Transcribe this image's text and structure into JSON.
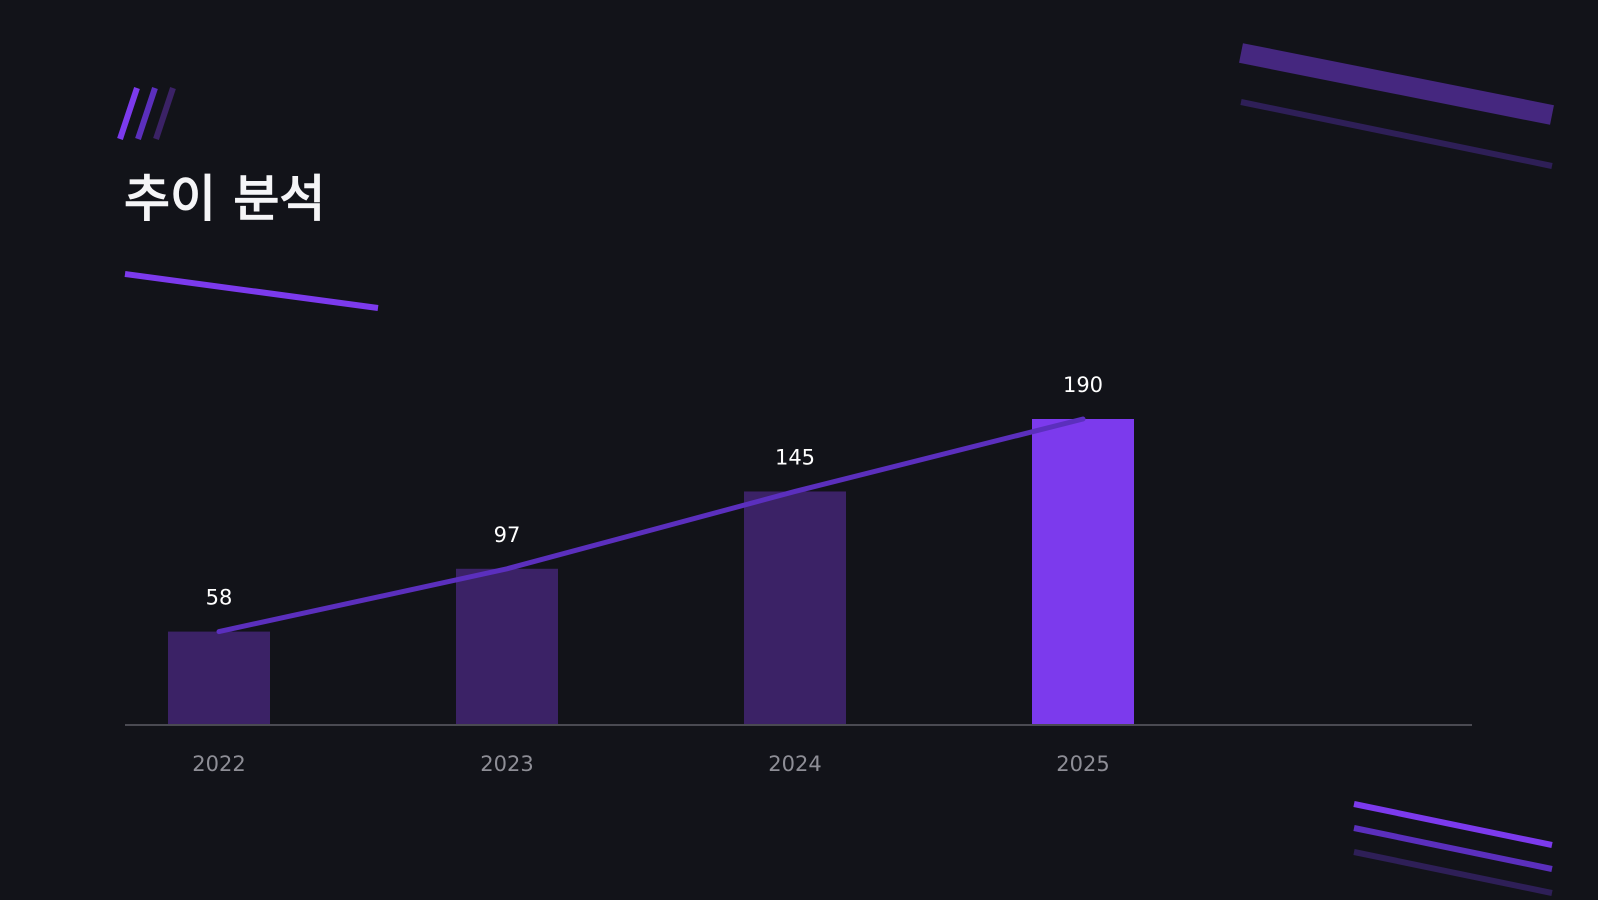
{
  "slide": {
    "title": "추이 분석"
  },
  "colors": {
    "background": "#121319",
    "accent": "#7c3aed",
    "bar_muted": "#3b2266",
    "trend_line": "#5b2fbd",
    "axis_line": "#4a4a52",
    "tick_text": "#8e8e96",
    "value_text": "#ffffff",
    "title_text": "#f5f5f7"
  },
  "chart_data": {
    "type": "bar",
    "categories": [
      "2022",
      "2023",
      "2024",
      "2025"
    ],
    "values": [
      58,
      97,
      145,
      190
    ],
    "highlight_category": "2025",
    "trend_line": true,
    "title": "",
    "xlabel": "",
    "ylabel": "",
    "ylim": [
      0,
      190
    ],
    "grid": false,
    "legend": "none"
  }
}
